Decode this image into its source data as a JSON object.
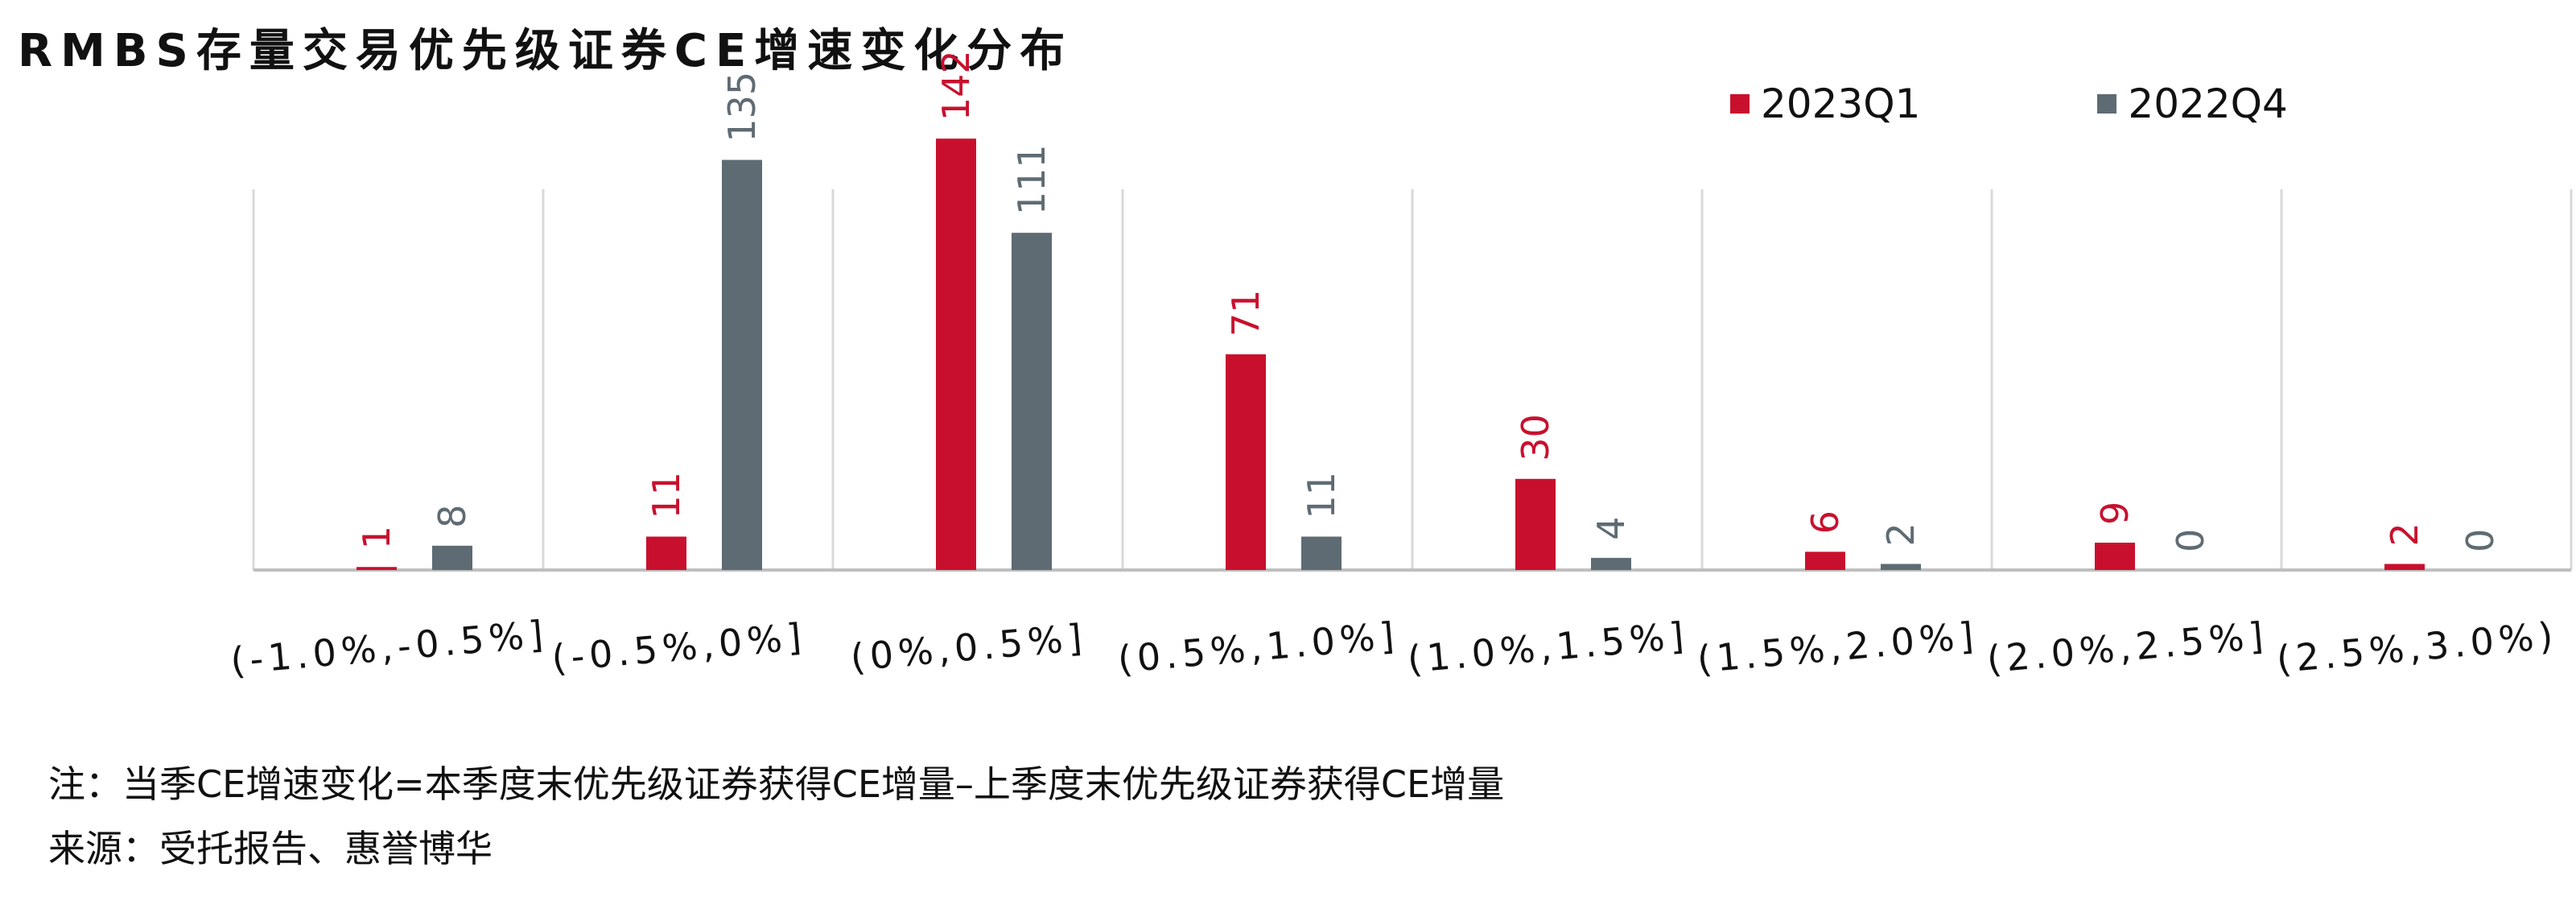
{
  "title": "RMBS存量交易优先级证券CE增速变化分布",
  "colors": {
    "s1": "#C8102E",
    "s2": "#5F6B73",
    "grid": "#D9D9D9",
    "axis": "#BFBFBF"
  },
  "legend": [
    {
      "label": "2023Q1",
      "color": "#C8102E"
    },
    {
      "label": "2022Q4",
      "color": "#5F6B73"
    }
  ],
  "chart_data": {
    "type": "bar",
    "categories": [
      "(-1.0%,-0.5%]",
      "(-0.5%,0%]",
      "(0%,0.5%]",
      "(0.5%,1.0%]",
      "(1.0%,1.5%]",
      "(1.5%,2.0%]",
      "(2.0%,2.5%]",
      "(2.5%,3.0%)"
    ],
    "series": [
      {
        "name": "2023Q1",
        "values": [
          1,
          11,
          142,
          71,
          30,
          6,
          9,
          2
        ]
      },
      {
        "name": "2022Q4",
        "values": [
          8,
          135,
          111,
          11,
          4,
          2,
          0,
          0
        ]
      }
    ],
    "ylim": [
      0,
      150
    ],
    "grid": "vertical separators",
    "legend_position": "top-right"
  },
  "footnote": {
    "note": "注：当季CE增速变化=本季度末优先级证券获得CE增量–上季度末优先级证券获得CE增量",
    "source": "来源：受托报告、惠誉博华"
  }
}
